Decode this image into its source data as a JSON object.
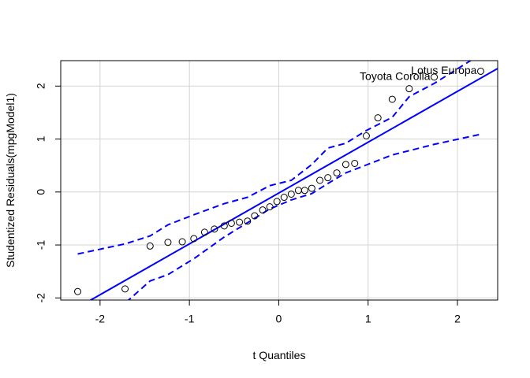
{
  "chart_data": {
    "type": "qqplot",
    "xlabel": "t Quantiles",
    "ylabel": "Studentized Residuals(mpgModel1)",
    "x": [
      -2.25,
      -1.72,
      -1.44,
      -1.24,
      -1.08,
      -0.95,
      -0.83,
      -0.72,
      -0.61,
      -0.53,
      -0.44,
      -0.35,
      -0.27,
      -0.18,
      -0.1,
      -0.02,
      0.06,
      0.14,
      0.22,
      0.29,
      0.37,
      0.46,
      0.55,
      0.65,
      0.75,
      0.85,
      0.98,
      1.11,
      1.27,
      1.46,
      1.74,
      2.26
    ],
    "values": [
      -1.88,
      -1.83,
      -1.02,
      -0.95,
      -0.94,
      -0.88,
      -0.76,
      -0.7,
      -0.64,
      -0.59,
      -0.57,
      -0.55,
      -0.45,
      -0.34,
      -0.28,
      -0.18,
      -0.1,
      -0.04,
      0.03,
      0.03,
      0.07,
      0.22,
      0.27,
      0.36,
      0.52,
      0.54,
      1.06,
      1.4,
      1.75,
      1.95,
      2.17,
      2.28
    ],
    "point_labels": [
      null,
      null,
      null,
      null,
      null,
      null,
      null,
      null,
      null,
      null,
      null,
      null,
      null,
      null,
      null,
      null,
      null,
      null,
      null,
      null,
      null,
      null,
      null,
      null,
      null,
      null,
      null,
      null,
      null,
      null,
      "Toyota Corolla",
      "Lotus Europa"
    ],
    "point_color": "#000000",
    "reference_line": {
      "intercept": -0.02,
      "slope": 0.96,
      "color": "#0000ff"
    },
    "envelope": {
      "color": "#0000ff",
      "x": [
        -2.25,
        -1.72,
        -1.44,
        -1.24,
        -0.95,
        -0.61,
        -0.35,
        -0.1,
        0.14,
        0.37,
        0.55,
        0.75,
        0.98,
        1.27,
        1.46,
        1.74,
        2.26
      ],
      "upper": [
        -1.17,
        -0.98,
        -0.83,
        -0.62,
        -0.43,
        -0.22,
        -0.1,
        0.12,
        0.22,
        0.52,
        0.83,
        0.92,
        1.16,
        1.41,
        1.8,
        2.05,
        2.6
      ],
      "lower": [
        -2.8,
        -2.1,
        -1.68,
        -1.56,
        -1.26,
        -0.85,
        -0.58,
        -0.32,
        -0.15,
        -0.03,
        0.16,
        0.36,
        0.51,
        0.7,
        0.78,
        0.9,
        1.09
      ]
    },
    "xlim": [
      -2.44,
      2.45
    ],
    "ylim": [
      -2.04,
      2.48
    ],
    "xticks": [
      -2,
      -1,
      0,
      1,
      2
    ],
    "yticks": [
      -2,
      -1,
      0,
      1,
      2
    ],
    "grid": true
  }
}
